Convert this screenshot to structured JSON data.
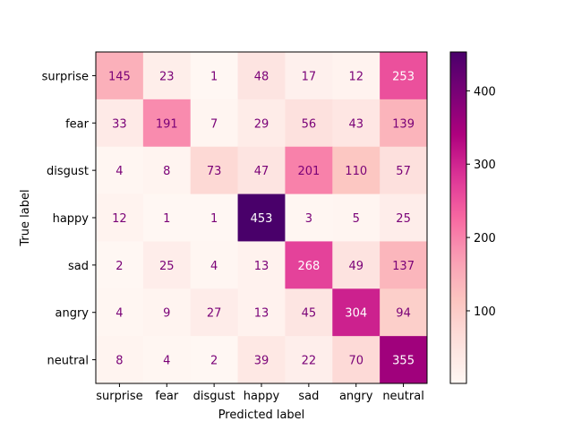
{
  "chart_data": {
    "type": "heatmap",
    "xlabel": "Predicted label",
    "ylabel": "True label",
    "x_categories": [
      "surprise",
      "fear",
      "disgust",
      "happy",
      "sad",
      "angry",
      "neutral"
    ],
    "y_categories": [
      "surprise",
      "fear",
      "disgust",
      "happy",
      "sad",
      "angry",
      "neutral"
    ],
    "matrix": [
      [
        145,
        23,
        1,
        48,
        17,
        12,
        253
      ],
      [
        33,
        191,
        7,
        29,
        56,
        43,
        139
      ],
      [
        4,
        8,
        73,
        47,
        201,
        110,
        57
      ],
      [
        12,
        1,
        1,
        453,
        3,
        5,
        25
      ],
      [
        2,
        25,
        4,
        13,
        268,
        49,
        137
      ],
      [
        4,
        9,
        27,
        13,
        45,
        304,
        94
      ],
      [
        8,
        4,
        2,
        39,
        22,
        70,
        355
      ]
    ],
    "colormap": "RdPu",
    "color_range": [
      1,
      453
    ],
    "colorbar_ticks": [
      100,
      200,
      300,
      400
    ],
    "text_color_light": "#ffffff",
    "text_color_dark": "#7a0177"
  }
}
